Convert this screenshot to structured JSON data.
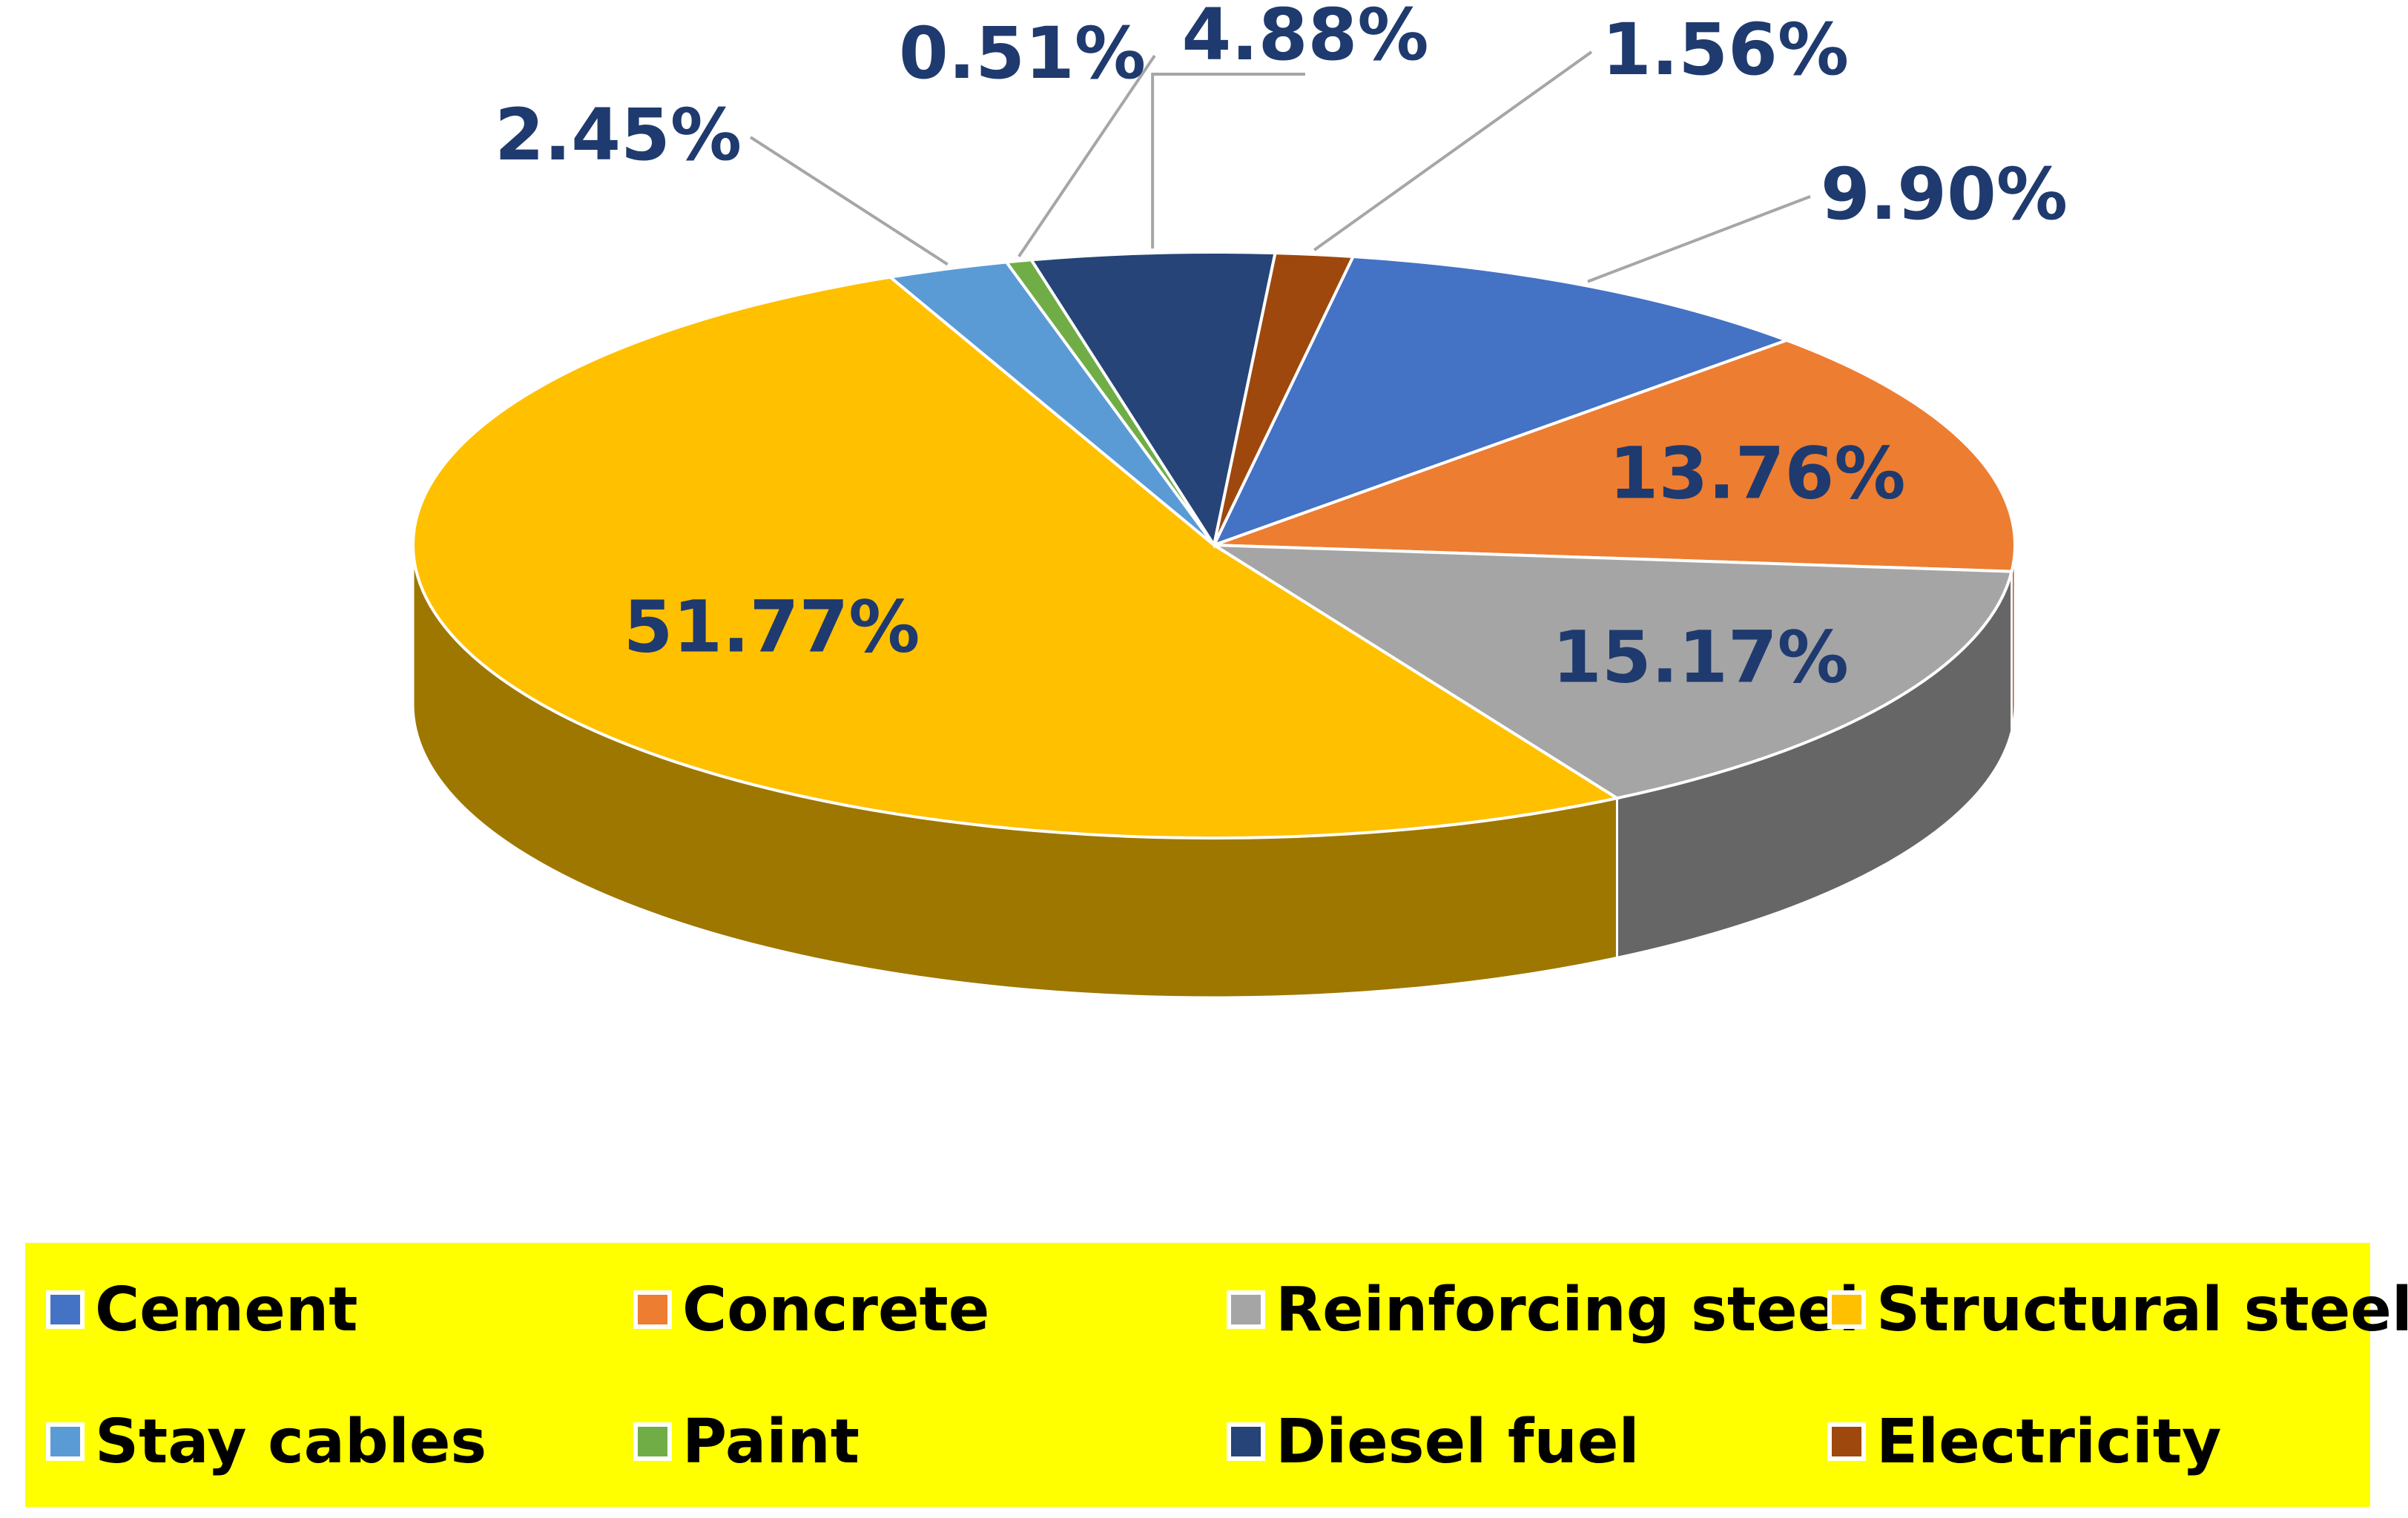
{
  "chart_data": {
    "type": "pie",
    "title": "",
    "style": "3d-pie",
    "legend_position": "bottom",
    "slices": [
      {
        "label": "Cement",
        "value": 9.9,
        "value_label": "9.90%",
        "color": "#4472c4"
      },
      {
        "label": "Concrete",
        "value": 13.76,
        "value_label": "13.76%",
        "color": "#ed7d31"
      },
      {
        "label": "Reinforcing steel",
        "value": 15.17,
        "value_label": "15.17%",
        "color": "#a5a5a5"
      },
      {
        "label": "Structural steel",
        "value": 51.77,
        "value_label": "51.77%",
        "color": "#ffc000"
      },
      {
        "label": "Stay cables",
        "value": 2.45,
        "value_label": "2.45%",
        "color": "#5b9bd5"
      },
      {
        "label": "Paint",
        "value": 0.51,
        "value_label": "0.51%",
        "color": "#70ad47"
      },
      {
        "label": "Diesel fuel",
        "value": 4.88,
        "value_label": "4.88%",
        "color": "#264478"
      },
      {
        "label": "Electricity",
        "value": 1.56,
        "value_label": "1.56%",
        "color": "#9e480e"
      }
    ],
    "colors": {
      "legend_background": "#ffff00",
      "label_text": "#1f3a6e"
    }
  }
}
